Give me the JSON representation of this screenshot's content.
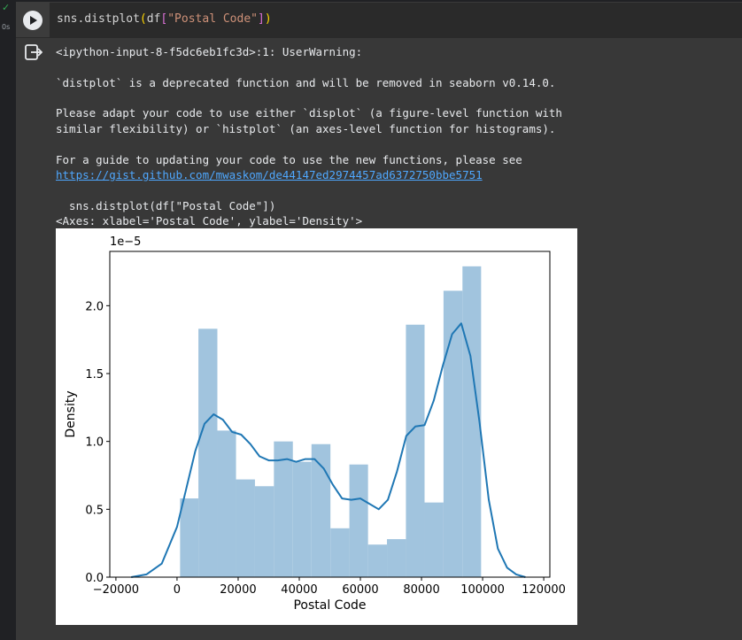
{
  "cell": {
    "status_icon": "check-icon",
    "exec_time": "0s",
    "code_prefix": "sns.distplot",
    "code_df": "df",
    "code_key": "\"Postal Code\""
  },
  "output": {
    "icon": "output-redirect-icon",
    "warning_header": "<ipython-input-8-f5dc6eb1fc3d>:1: UserWarning:",
    "warning_line1": "`distplot` is a deprecated function and will be removed in seaborn v0.14.0.",
    "warning_line2": "Please adapt your code to use either `displot` (a figure-level function with",
    "warning_line3": "similar flexibility) or `histplot` (an axes-level function for histograms).",
    "warning_line4": "For a guide to updating your code to use the new functions, please see",
    "warning_link": "https://gist.github.com/mwaskom/de44147ed2974457ad6372750bbe5751",
    "source_line": "  sns.distplot(df[\"Postal Code\"])",
    "axes_repr": "<Axes: xlabel='Postal Code', ylabel='Density'>"
  },
  "chart_data": {
    "type": "bar",
    "xlabel": "Postal Code",
    "ylabel": "Density",
    "offset_label": "1e−5",
    "scale": 1e-05,
    "xlim": [
      -22000,
      122000
    ],
    "ylim": [
      0,
      2.4
    ],
    "xticks": [
      -20000,
      0,
      20000,
      40000,
      60000,
      80000,
      100000,
      120000
    ],
    "xtick_labels": [
      "−20000",
      "0",
      "20000",
      "40000",
      "60000",
      "80000",
      "100000",
      "120000"
    ],
    "yticks": [
      0.0,
      0.5,
      1.0,
      1.5,
      2.0
    ],
    "ytick_labels": [
      "0.0",
      "0.5",
      "1.0",
      "1.5",
      "2.0"
    ],
    "bar_color": "#a1c4de",
    "line_color": "#1f77b4",
    "bins": [
      {
        "x0": 1000,
        "x1": 7000,
        "density": 0.58
      },
      {
        "x0": 7000,
        "x1": 13200,
        "density": 1.83
      },
      {
        "x0": 13200,
        "x1": 19300,
        "density": 1.08
      },
      {
        "x0": 19300,
        "x1": 25500,
        "density": 0.72
      },
      {
        "x0": 25500,
        "x1": 31700,
        "density": 0.67
      },
      {
        "x0": 31700,
        "x1": 37900,
        "density": 1.0
      },
      {
        "x0": 37900,
        "x1": 44000,
        "density": 0.85
      },
      {
        "x0": 44000,
        "x1": 50200,
        "density": 0.98
      },
      {
        "x0": 50200,
        "x1": 56400,
        "density": 0.36
      },
      {
        "x0": 56400,
        "x1": 62500,
        "density": 0.83
      },
      {
        "x0": 62500,
        "x1": 68700,
        "density": 0.24
      },
      {
        "x0": 68700,
        "x1": 74900,
        "density": 0.28
      },
      {
        "x0": 74900,
        "x1": 81000,
        "density": 1.86
      },
      {
        "x0": 81000,
        "x1": 87200,
        "density": 0.55
      },
      {
        "x0": 87200,
        "x1": 93400,
        "density": 2.11
      },
      {
        "x0": 93400,
        "x1": 99500,
        "density": 2.29
      }
    ],
    "kde": {
      "x": [
        -15000,
        -10000,
        -5000,
        0,
        3000,
        6000,
        9000,
        12000,
        15000,
        18000,
        21000,
        24000,
        27000,
        30000,
        33000,
        36000,
        39000,
        42000,
        45000,
        48000,
        51000,
        54000,
        57000,
        60000,
        63000,
        66000,
        69000,
        72000,
        75000,
        78000,
        81000,
        84000,
        87000,
        90000,
        93000,
        96000,
        99000,
        102000,
        105000,
        108000,
        111000,
        114000
      ],
      "y": [
        0.0,
        0.02,
        0.1,
        0.37,
        0.65,
        0.93,
        1.13,
        1.2,
        1.16,
        1.07,
        1.05,
        0.98,
        0.89,
        0.86,
        0.86,
        0.87,
        0.85,
        0.87,
        0.87,
        0.8,
        0.68,
        0.58,
        0.57,
        0.58,
        0.54,
        0.5,
        0.57,
        0.78,
        1.04,
        1.11,
        1.12,
        1.3,
        1.56,
        1.79,
        1.87,
        1.63,
        1.14,
        0.57,
        0.21,
        0.07,
        0.02,
        0.0
      ]
    }
  }
}
